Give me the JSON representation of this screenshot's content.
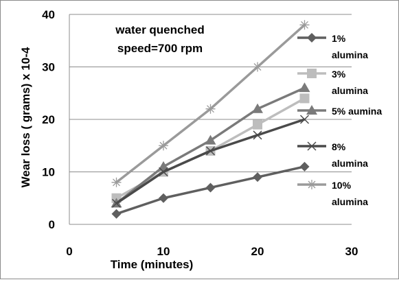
{
  "chart_data": {
    "type": "line",
    "title_lines": [
      "water quenched",
      "speed=700 rpm"
    ],
    "xlabel": "Time (minutes)",
    "ylabel": "Wear loss ( grams) x 10-4",
    "xlim": [
      0,
      30
    ],
    "ylim": [
      0,
      40
    ],
    "xticks": [
      0,
      10,
      20,
      30
    ],
    "yticks": [
      0,
      10,
      20,
      30,
      40
    ],
    "grid": "horizontal",
    "legend": "right",
    "x": [
      5,
      10,
      15,
      20,
      25
    ],
    "series": [
      {
        "name": "1% alumina",
        "name_lines": [
          "1%",
          "alumina"
        ],
        "values": [
          2,
          5,
          7,
          9,
          11
        ],
        "color": "#5f5f5f",
        "marker": "diamond"
      },
      {
        "name": "3% alumina",
        "name_lines": [
          "3%",
          "alumina"
        ],
        "values": [
          5,
          10,
          14,
          19,
          24
        ],
        "color": "#bdbdbd",
        "marker": "square"
      },
      {
        "name": "5% aumina",
        "name_lines": [
          "5% aumina"
        ],
        "values": [
          4,
          11,
          16,
          22,
          26
        ],
        "color": "#7a7a7a",
        "marker": "triangle"
      },
      {
        "name": "8% alumina",
        "name_lines": [
          "8%",
          "alumina"
        ],
        "values": [
          4,
          10,
          14,
          17,
          20
        ],
        "color": "#4a4a4a",
        "marker": "x"
      },
      {
        "name": "10% alumina",
        "name_lines": [
          "10%",
          "alumina"
        ],
        "values": [
          8,
          15,
          22,
          30,
          38
        ],
        "color": "#9a9a9a",
        "marker": "star"
      }
    ]
  }
}
